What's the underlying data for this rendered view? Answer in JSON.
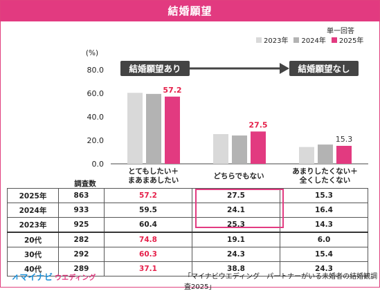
{
  "title": "結婚願望",
  "single_answer": "単一回答",
  "legend": [
    {
      "label": "2023年",
      "color": "#d9d9d9"
    },
    {
      "label": "2024年",
      "color": "#b3b3b3"
    },
    {
      "label": "2025年",
      "color": "#e23a80"
    }
  ],
  "arrows": {
    "left": "結婚願望あり",
    "right": "結婚願望なし"
  },
  "count_header": "調査数",
  "categories": [
    {
      "line1": "とてもしたい＋",
      "line2": "まあまあしたい"
    },
    {
      "line1": "どちらでもない",
      "line2": ""
    },
    {
      "line1": "あまりしたくない＋",
      "line2": "全くしたくない"
    }
  ],
  "chart_data": {
    "type": "bar",
    "ylabel": "(%)",
    "ylim": [
      0,
      80
    ],
    "yticks": [
      "0.0",
      "20.0",
      "40.0",
      "60.0",
      "80.0"
    ],
    "categories": [
      "とてもしたい＋まあまあしたい",
      "どちらでもない",
      "あまりしたくない＋全くしたくない"
    ],
    "series": [
      {
        "name": "2023年",
        "color": "#d9d9d9",
        "values": [
          60.4,
          25.3,
          14.3
        ]
      },
      {
        "name": "2024年",
        "color": "#b3b3b3",
        "values": [
          59.5,
          24.1,
          16.4
        ]
      },
      {
        "name": "2025年",
        "color": "#e23a80",
        "values": [
          57.2,
          27.5,
          15.3
        ]
      }
    ],
    "data_labels": [
      {
        "text": "57.2",
        "color": "#e5204a"
      },
      {
        "text": "27.5",
        "color": "#e5204a"
      },
      {
        "text": "15.3",
        "color": "#333333"
      }
    ]
  },
  "table": {
    "rows": [
      {
        "label": "2025年",
        "count": "863",
        "values": [
          "57.2",
          "27.5",
          "15.3"
        ],
        "red": [
          true,
          false,
          false
        ]
      },
      {
        "label": "2024年",
        "count": "933",
        "values": [
          "59.5",
          "24.1",
          "16.4"
        ],
        "red": [
          false,
          false,
          false
        ]
      },
      {
        "label": "2023年",
        "count": "925",
        "values": [
          "60.4",
          "25.3",
          "14.3"
        ],
        "red": [
          false,
          false,
          false
        ]
      },
      {
        "label": "20代",
        "count": "282",
        "values": [
          "74.8",
          "19.1",
          "6.0"
        ],
        "red": [
          true,
          false,
          false
        ],
        "sep": true
      },
      {
        "label": "30代",
        "count": "292",
        "values": [
          "60.3",
          "24.3",
          "15.4"
        ],
        "red": [
          true,
          false,
          false
        ]
      },
      {
        "label": "40代",
        "count": "289",
        "values": [
          "37.1",
          "38.8",
          "24.3"
        ],
        "red": [
          true,
          false,
          false
        ]
      }
    ]
  },
  "logo": {
    "brand": "マイナビ",
    "sub": "ウエディング"
  },
  "source": "「マイナビウエディング　パートナーがいる未婚者の結婚観調査2025」"
}
